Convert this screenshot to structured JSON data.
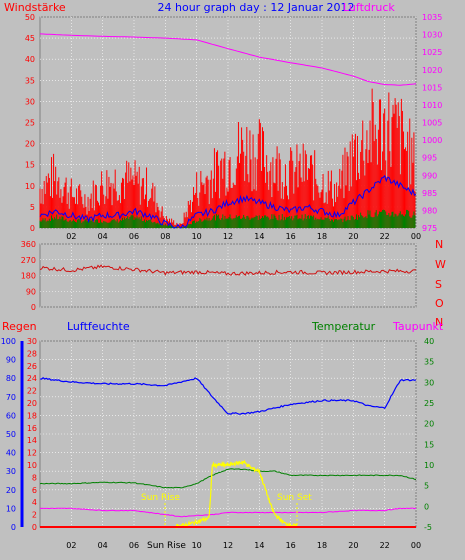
{
  "header": {
    "left_label": "Windstärke",
    "title": "24 hour graph day : 12 Januar 2012",
    "right_label": "Luftdruck"
  },
  "colors": {
    "background": "#c0c0c0",
    "grid": "#ffffff",
    "wind": "#ff0000",
    "gust": "#ff0000",
    "average": "#0000ff",
    "beaufort": "#008000",
    "pressure": "#ff00ff",
    "direction": "#d01010",
    "humidity": "#0000ff",
    "temperature": "#008000",
    "dewpoint": "#ff00ff",
    "rain": "#ff0000",
    "sun": "#ffff00",
    "sun_marker": "#ffff00"
  },
  "chart_data": [
    {
      "type": "line",
      "panel": "wind_pressure",
      "x_ticks": [
        "02",
        "04",
        "06",
        "08",
        "10",
        "12",
        "14",
        "16",
        "18",
        "20",
        "22",
        "00"
      ],
      "xlim": [
        0,
        24
      ],
      "y_left": {
        "label": "Windstärke",
        "ticks": [
          0,
          5,
          10,
          15,
          20,
          25,
          30,
          35,
          40,
          45,
          50
        ],
        "ylim": [
          0,
          50
        ]
      },
      "y_right": {
        "label": "Luftdruck",
        "ticks": [
          975,
          980,
          985,
          990,
          995,
          1000,
          1005,
          1010,
          1015,
          1020,
          1025,
          1030,
          1035
        ],
        "ylim": [
          975,
          1035
        ]
      },
      "series": {
        "gust_envelope": {
          "x": [
            0,
            1,
            2,
            3,
            4,
            5,
            6,
            7,
            8,
            9,
            10,
            11,
            12,
            13,
            14,
            15,
            16,
            17,
            18,
            19,
            20,
            21,
            22,
            23,
            24
          ],
          "y": [
            13,
            17,
            11,
            9,
            14,
            16,
            15,
            13,
            3,
            1,
            13,
            17,
            22,
            26,
            24,
            20,
            18,
            19,
            15,
            12,
            24,
            30,
            33,
            30,
            20
          ]
        },
        "average": {
          "x": [
            0,
            1,
            2,
            3,
            4,
            5,
            6,
            7,
            8,
            9,
            10,
            11,
            12,
            13,
            14,
            15,
            16,
            17,
            18,
            19,
            20,
            21,
            22,
            23,
            24
          ],
          "y": [
            3,
            4,
            3,
            2,
            3,
            3,
            4,
            3,
            1,
            0,
            3,
            4,
            6,
            7,
            6,
            5,
            4,
            5,
            4,
            3,
            6,
            9,
            12,
            10,
            8
          ]
        },
        "beaufort": {
          "x": [
            0,
            1,
            2,
            3,
            4,
            5,
            6,
            7,
            8,
            9,
            10,
            11,
            12,
            13,
            14,
            15,
            16,
            17,
            18,
            19,
            20,
            21,
            22,
            23,
            24
          ],
          "y": [
            2,
            3,
            2,
            2,
            2,
            2,
            3,
            2,
            1,
            0,
            2,
            3,
            3,
            3,
            3,
            3,
            3,
            3,
            3,
            2,
            3,
            4,
            4,
            4,
            4
          ]
        },
        "pressure": {
          "x": [
            0,
            2,
            4,
            6,
            8,
            10,
            12,
            14,
            16,
            18,
            20,
            21,
            22,
            23,
            24
          ],
          "y": [
            1030.2,
            1029.8,
            1029.5,
            1029.3,
            1029.0,
            1028.5,
            1026.0,
            1023.6,
            1022.0,
            1020.5,
            1018.2,
            1016.6,
            1015.8,
            1015.6,
            1016.0
          ]
        }
      }
    },
    {
      "type": "line",
      "panel": "wind_direction",
      "y_left": {
        "ticks": [
          0,
          90,
          180,
          270,
          360
        ],
        "ylim": [
          0,
          360
        ]
      },
      "y_right_labels": [
        "N",
        "W",
        "S",
        "O",
        "N"
      ],
      "series": {
        "direction": {
          "x": [
            0,
            2,
            4,
            6,
            8,
            10,
            12,
            14,
            16,
            18,
            20,
            22,
            24
          ],
          "y": [
            225,
            210,
            230,
            215,
            195,
            200,
            190,
            195,
            200,
            195,
            200,
            205,
            205
          ]
        }
      }
    },
    {
      "type": "line",
      "panel": "humidity_temperature",
      "header": {
        "regen": "Regen",
        "luftfeuchte": "Luftfeuchte",
        "temperatur": "Temperatur",
        "taupunkt": "Taupunkt"
      },
      "x_ticks": [
        "02",
        "04",
        "06",
        "08",
        "10",
        "12",
        "14",
        "16",
        "18",
        "20",
        "22",
        "00"
      ],
      "y_humidity": {
        "ticks": [
          0,
          10,
          20,
          30,
          40,
          50,
          60,
          70,
          80,
          90,
          100
        ],
        "ylim": [
          0,
          100
        ]
      },
      "y_rain": {
        "ticks": [
          0,
          2,
          4,
          6,
          8,
          10,
          12,
          14,
          16,
          18,
          20,
          22,
          24,
          26,
          28,
          30
        ],
        "ylim": [
          0,
          30
        ]
      },
      "y_temperature": {
        "ticks": [
          -5,
          0,
          5,
          10,
          15,
          20,
          25,
          30,
          35,
          40
        ],
        "ylim": [
          -5,
          40
        ]
      },
      "sun_labels": {
        "rise_marker": "Sun Rise",
        "set_marker": "Sun Set",
        "axis_rise": "Sun Rise"
      },
      "series": {
        "humidity": {
          "x": [
            0,
            2,
            4,
            6,
            8,
            9,
            10,
            11,
            12,
            13,
            14,
            15,
            16,
            18,
            20,
            21,
            22,
            23,
            24
          ],
          "y": [
            80,
            78,
            77,
            77,
            76,
            78,
            80,
            70,
            61,
            61,
            62,
            64,
            66,
            68,
            68,
            65,
            64,
            79,
            79
          ]
        },
        "temperature": {
          "x": [
            0,
            2,
            4,
            6,
            8,
            9,
            10,
            11,
            12,
            13,
            14,
            15,
            16,
            18,
            20,
            22,
            23,
            24
          ],
          "y": [
            5.5,
            5.5,
            5.8,
            5.7,
            4.5,
            4.5,
            5.5,
            7.5,
            9.0,
            9.0,
            8.5,
            8.5,
            7.5,
            7.5,
            7.5,
            7.5,
            7.5,
            6.5
          ]
        },
        "dewpoint": {
          "x": [
            0,
            2,
            4,
            6,
            8,
            9,
            10,
            11,
            12,
            14,
            16,
            18,
            20,
            22,
            23,
            24
          ],
          "y": [
            -0.5,
            -0.5,
            -1.0,
            -1.0,
            -2.0,
            -2.5,
            -2.2,
            -2.0,
            -1.5,
            -1.5,
            -1.5,
            -1.5,
            -1.0,
            -1.0,
            -0.5,
            -0.5
          ]
        },
        "sun": {
          "x": [
            8.6,
            9.2,
            10,
            10.8,
            11.0,
            12,
            13,
            13.5,
            14,
            14.8,
            15,
            15.6,
            16.4
          ],
          "y": [
            0.1,
            0.3,
            0.8,
            1.5,
            10,
            10,
            10.5,
            9.5,
            9.0,
            3,
            2,
            0.6,
            0.1
          ]
        },
        "rain": {
          "x": [
            0,
            24
          ],
          "y": [
            0,
            0
          ]
        }
      }
    }
  ]
}
